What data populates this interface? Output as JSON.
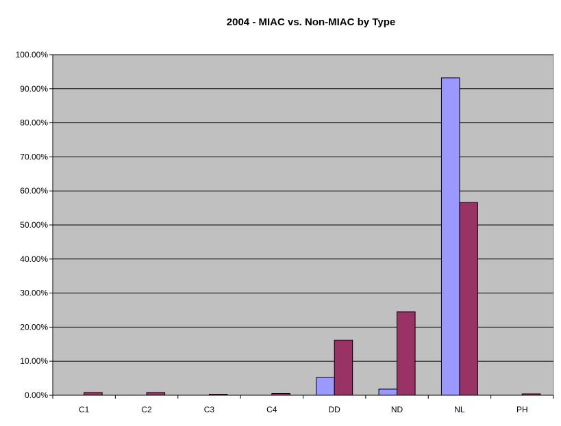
{
  "chart_data": {
    "type": "bar",
    "title": "2004 - MIAC vs. Non-MIAC by Type",
    "xlabel": "",
    "ylabel": "",
    "ylim": [
      0,
      100
    ],
    "y_tick_labels": [
      "0.00%",
      "10.00%",
      "20.00%",
      "30.00%",
      "40.00%",
      "50.00%",
      "60.00%",
      "70.00%",
      "80.00%",
      "90.00%",
      "100.00%"
    ],
    "categories": [
      "C1",
      "C2",
      "C3",
      "C4",
      "DD",
      "ND",
      "NL",
      "PH"
    ],
    "series": [
      {
        "values": [
          0.0,
          0.0,
          0.0,
          0.0,
          5.2,
          1.8,
          93.2,
          0.0
        ]
      },
      {
        "values": [
          0.8,
          0.8,
          0.3,
          0.5,
          16.2,
          24.5,
          56.6,
          0.4
        ]
      }
    ],
    "legend": false,
    "grid": "horizontal",
    "colors": {
      "plot_background": "#c0c0c0",
      "series": [
        "#9999ff",
        "#993366"
      ],
      "gridline": "#000000",
      "bar_border": "#000000"
    }
  }
}
